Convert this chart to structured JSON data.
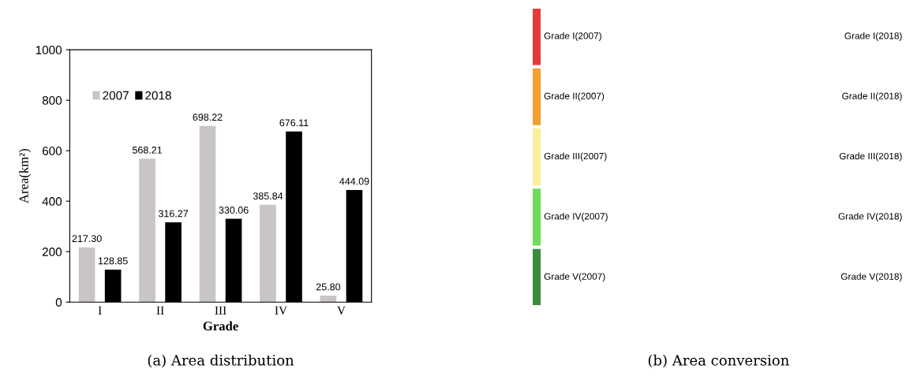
{
  "chart_data": [
    {
      "type": "bar",
      "title": "(a) Area distribution",
      "xlabel": "Grade",
      "ylabel": "Area(km²)",
      "categories": [
        "I",
        "II",
        "III",
        "IV",
        "V"
      ],
      "series": [
        {
          "name": "2007",
          "color": "#c9c5c5",
          "values": [
            217.3,
            568.21,
            698.22,
            385.84,
            25.8
          ],
          "value_labels": [
            "217.30",
            "568.21",
            "698.22",
            "385.84",
            "25.80"
          ]
        },
        {
          "name": "2018",
          "color": "#000000",
          "values": [
            128.85,
            316.27,
            330.06,
            676.11,
            444.09
          ],
          "value_labels": [
            "128.85",
            "316.27",
            "330.06",
            "676.11",
            "444.09"
          ]
        }
      ],
      "ylim": [
        0,
        1000
      ],
      "yticks": [
        0,
        200,
        400,
        600,
        800,
        1000
      ],
      "grid": false,
      "legend": "top left"
    },
    {
      "type": "other",
      "title": "(b) Area conversion",
      "categories": [
        "Grade I(2007)",
        "Grade II(2007)",
        "Grade III(2007)",
        "Grade IV(2007)",
        "Grade V(2007)"
      ],
      "y2_categories": [
        "Grade I(2018)",
        "Grade II(2018)",
        "Grade III(2018)",
        "Grade IV(2018)",
        "Grade V(2018)"
      ],
      "colors": [
        "#e33b3b",
        "#f0a030",
        "#f7ef9a",
        "#6fdc5c",
        "#3c8a3c"
      ]
    }
  ]
}
